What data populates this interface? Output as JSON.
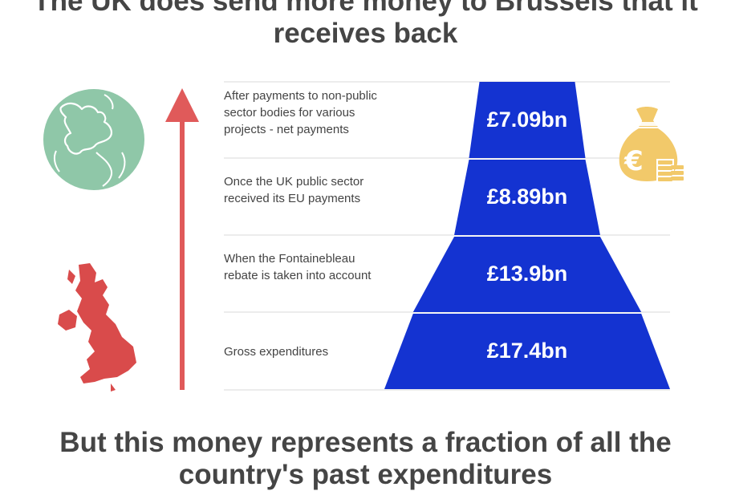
{
  "titles": {
    "top": "The UK does send more money to Brussels that it receives back",
    "bottom": "But this money represents a fraction of all the country's past expenditures"
  },
  "colors": {
    "funnel": "#1433d1",
    "arrow": "#e05a5a",
    "uk_map": "#d94b4b",
    "globe": "#8fc7a8",
    "money_bag": "#f2c96a",
    "divider": "#d9d9d9",
    "label_text": "#444444",
    "headline_text": "#454545"
  },
  "icons": [
    "globe-europe-icon",
    "uk-map-icon",
    "up-arrow-icon",
    "euro-money-bag-icon"
  ],
  "chart_data": {
    "type": "funnel",
    "unit": "£bn",
    "stages": [
      {
        "label": "After payments to non-public sector bodies for various projects - net payments",
        "value": 7.09,
        "display": "£7.09bn"
      },
      {
        "label": "Once the UK public sector received its EU payments",
        "value": 8.89,
        "display": "£8.89bn"
      },
      {
        "label": "When the Fontainebleau rebate is taken into account",
        "value": 13.9,
        "display": "£13.9bn"
      },
      {
        "label": "Gross expenditures",
        "value": 17.4,
        "display": "£17.4bn"
      }
    ]
  }
}
